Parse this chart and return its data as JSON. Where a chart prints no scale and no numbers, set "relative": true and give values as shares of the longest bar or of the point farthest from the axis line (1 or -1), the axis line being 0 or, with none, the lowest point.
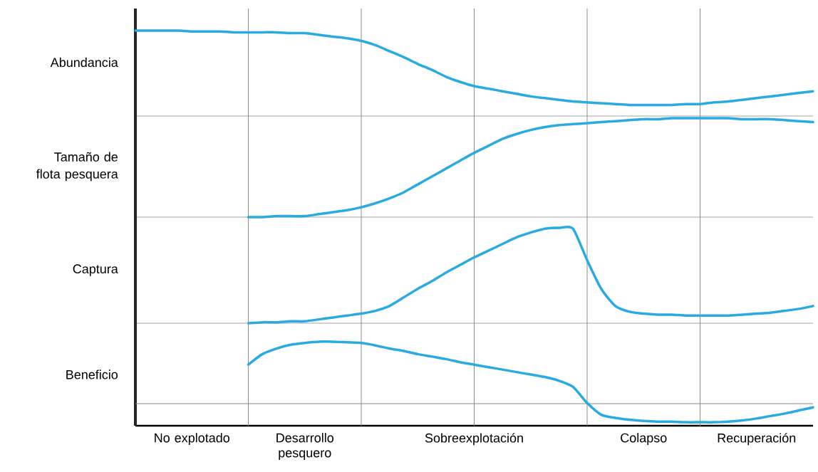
{
  "chart_data": [
    {
      "type": "line",
      "relative": true,
      "ylabel": "Abundancia",
      "color": "#29abe2",
      "tick_labels": false,
      "grid": "x",
      "categories": [
        null,
        null,
        null,
        null,
        null,
        null,
        null,
        null,
        null,
        null,
        null,
        null,
        null,
        null,
        null,
        null,
        null,
        null,
        null,
        null,
        null,
        null,
        null,
        null,
        null,
        null,
        null,
        null,
        null,
        null,
        null,
        null,
        null,
        null,
        null,
        null,
        null,
        null,
        null,
        null,
        null,
        null,
        null,
        null,
        null,
        null,
        null,
        null,
        null
      ],
      "values": [
        1,
        1,
        1,
        1,
        0.99,
        0.99,
        0.99,
        0.98,
        0.98,
        0.98,
        0.98,
        0.97,
        0.97,
        0.95,
        0.93,
        0.91,
        0.88,
        0.83,
        0.76,
        0.69,
        0.61,
        0.54,
        0.46,
        0.4,
        0.35,
        0.32,
        0.29,
        0.26,
        0.23,
        0.21,
        0.19,
        0.17,
        0.16,
        0.15,
        0.14,
        0.13,
        0.13,
        0.13,
        0.13,
        0.14,
        0.14,
        0.16,
        0.17,
        0.19,
        0.21,
        0.23,
        0.25,
        0.27,
        0.29
      ]
    },
    {
      "type": "line",
      "relative": true,
      "ylabel": "Tamaño de flota pesquera",
      "color": "#29abe2",
      "tick_labels": false,
      "grid": "x",
      "categories": [
        null,
        null,
        null,
        null,
        null,
        null,
        null,
        null,
        null,
        null,
        null,
        null,
        null,
        null,
        null,
        null,
        null,
        null,
        null,
        null,
        null,
        null,
        null,
        null,
        null,
        null,
        null,
        null,
        null,
        null,
        null,
        null,
        null,
        null,
        null,
        null,
        null,
        null,
        null,
        null,
        null,
        null,
        null,
        null,
        null,
        null,
        null,
        null,
        null
      ],
      "values": [
        null,
        null,
        null,
        null,
        null,
        null,
        null,
        null,
        0,
        0,
        0.01,
        0.01,
        0.01,
        0.03,
        0.05,
        0.07,
        0.1,
        0.14,
        0.19,
        0.25,
        0.33,
        0.41,
        0.49,
        0.57,
        0.65,
        0.72,
        0.79,
        0.84,
        0.88,
        0.91,
        0.93,
        0.94,
        0.95,
        0.96,
        0.97,
        0.98,
        0.99,
        0.99,
        1,
        1,
        1,
        1,
        1,
        0.99,
        0.99,
        0.99,
        0.98,
        0.97,
        0.96
      ]
    },
    {
      "type": "line",
      "relative": true,
      "ylabel": "Captura",
      "color": "#29abe2",
      "tick_labels": false,
      "grid": "x",
      "categories": [
        null,
        null,
        null,
        null,
        null,
        null,
        null,
        null,
        null,
        null,
        null,
        null,
        null,
        null,
        null,
        null,
        null,
        null,
        null,
        null,
        null,
        null,
        null,
        null,
        null,
        null,
        null,
        null,
        null,
        null,
        null,
        null,
        null,
        null,
        null,
        null,
        null,
        null,
        null,
        null,
        null,
        null,
        null,
        null,
        null,
        null,
        null,
        null,
        null
      ],
      "values": [
        null,
        null,
        null,
        null,
        null,
        null,
        null,
        null,
        0,
        0.01,
        0.01,
        0.02,
        0.02,
        0.04,
        0.06,
        0.08,
        0.1,
        0.13,
        0.18,
        0.27,
        0.36,
        0.44,
        0.53,
        0.61,
        0.69,
        0.76,
        0.83,
        0.9,
        0.95,
        0.99,
        1,
        0.99,
        0.66,
        0.36,
        0.18,
        0.12,
        0.1,
        0.09,
        0.09,
        0.08,
        0.08,
        0.08,
        0.08,
        0.09,
        0.1,
        0.11,
        0.13,
        0.15,
        0.18
      ]
    },
    {
      "type": "line",
      "relative": true,
      "ylabel": "Beneficio",
      "color": "#29abe2",
      "tick_labels": "x",
      "grid": "x",
      "categories": [
        null,
        null,
        null,
        null,
        "No explotado",
        null,
        null,
        null,
        null,
        null,
        null,
        null,
        "Desarrollo pesquero",
        null,
        null,
        null,
        null,
        null,
        null,
        null,
        null,
        null,
        null,
        null,
        "Sobreexplotación",
        null,
        null,
        null,
        null,
        null,
        null,
        null,
        null,
        null,
        null,
        null,
        "Colapso",
        null,
        null,
        null,
        null,
        null,
        null,
        null,
        "Recuperación",
        null,
        null,
        null,
        null
      ],
      "ref_lines": [
        {
          "axis": "y",
          "value": 0,
          "color": "#888888"
        }
      ],
      "values": [
        null,
        null,
        null,
        null,
        null,
        null,
        null,
        null,
        0.63,
        0.8,
        0.89,
        0.95,
        0.98,
        1,
        1,
        0.99,
        0.98,
        0.94,
        0.89,
        0.85,
        0.8,
        0.76,
        0.72,
        0.67,
        0.63,
        0.59,
        0.55,
        0.51,
        0.47,
        0.43,
        0.37,
        0.27,
        0.01,
        -0.18,
        -0.23,
        -0.26,
        -0.28,
        -0.29,
        -0.29,
        -0.3,
        -0.3,
        -0.3,
        -0.29,
        -0.27,
        -0.24,
        -0.2,
        -0.16,
        -0.11,
        -0.06
      ]
    }
  ]
}
